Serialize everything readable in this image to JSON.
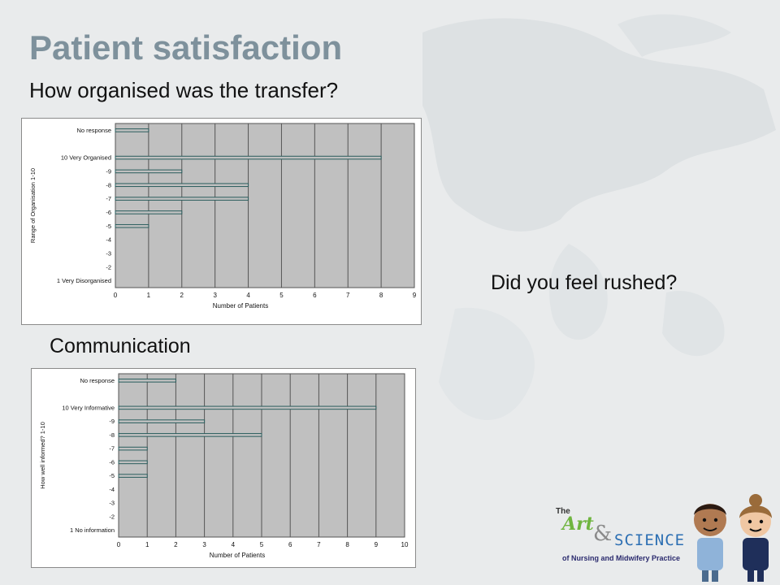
{
  "slide": {
    "title": "Patient satisfaction",
    "subtitle": "How organised was the transfer?",
    "rushed_label": "Did you feel rushed?",
    "communication_label": "Communication"
  },
  "logo": {
    "the": "The",
    "art": "Art",
    "amp": "&",
    "science": "SCIENCE",
    "subtitle": "of Nursing and Midwifery Practice"
  },
  "colors": {
    "title": "#7e919c",
    "plot_area": "#c0c0c0",
    "bar_fill": "#c0c0c0",
    "bar_edge": "#2a5d5d",
    "background": "#e9ebec"
  },
  "chart_data": [
    {
      "type": "bar",
      "orientation": "horizontal",
      "title": "",
      "categories": [
        "No response",
        "",
        "10 Very Organised",
        "-9",
        "-8",
        "-7",
        "-6",
        "-5",
        "-4",
        "-3",
        "-2",
        "1 Very Disorganised"
      ],
      "values": [
        1,
        0,
        8,
        2,
        4,
        4,
        2,
        1,
        0,
        0,
        0,
        0
      ],
      "xlabel": "Number of Patients",
      "ylabel": "Range of Organisation 1-10",
      "xlim": [
        0,
        9
      ],
      "xticks": [
        "0",
        "1",
        "2",
        "3",
        "4",
        "5",
        "6",
        "7",
        "8",
        "9"
      ],
      "grid": true
    },
    {
      "type": "bar",
      "orientation": "horizontal",
      "title": "",
      "categories": [
        "No response",
        "",
        "10 Very Informative",
        "-9",
        "-8",
        "-7",
        "-6",
        "-5",
        "-4",
        "-3",
        "-2",
        "1 No information"
      ],
      "values": [
        2,
        0,
        9,
        3,
        5,
        1,
        1,
        1,
        0,
        0,
        0,
        0
      ],
      "xlabel": "Number of Patients",
      "ylabel": "How well informed? 1-10",
      "xlim": [
        0,
        10
      ],
      "xticks": [
        "0",
        "1",
        "2",
        "3",
        "4",
        "5",
        "6",
        "7",
        "8",
        "9",
        "10"
      ],
      "grid": true
    }
  ]
}
